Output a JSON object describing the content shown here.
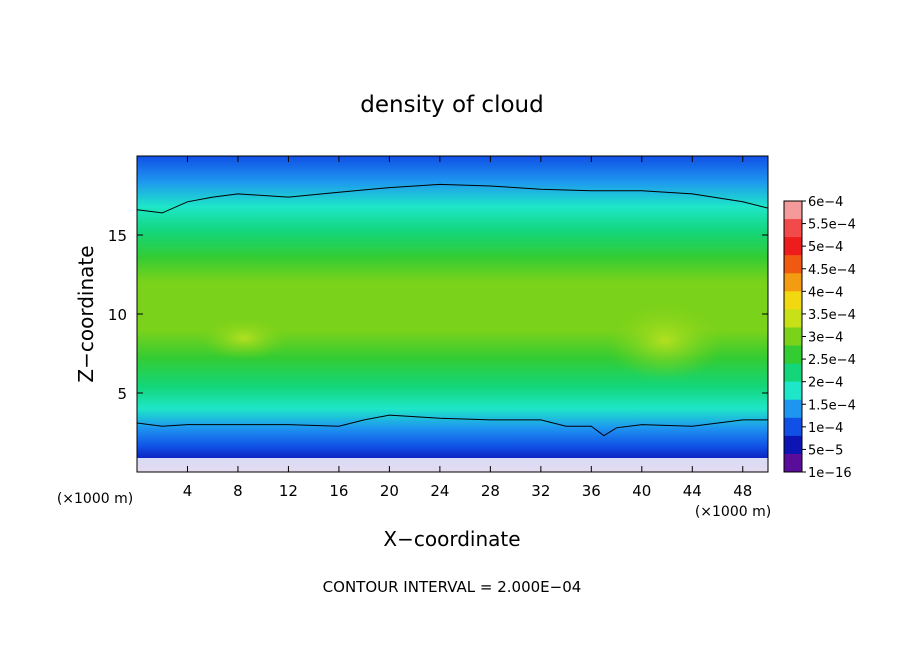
{
  "chart_data": {
    "type": "heatmap",
    "title": "density of cloud",
    "xlabel": "X−coordinate",
    "ylabel": "Z−coordinate",
    "x_unit_left": "(×1000 m)",
    "x_unit_right": "(×1000 m)",
    "footer": "CONTOUR INTERVAL = 2.000E−04",
    "xlim": [
      0,
      50
    ],
    "ylim": [
      0,
      20
    ],
    "x_ticks": [
      4,
      8,
      12,
      16,
      20,
      24,
      28,
      32,
      36,
      40,
      44,
      48
    ],
    "y_ticks": [
      5,
      10,
      15
    ],
    "colorbar": {
      "labels": [
        "6e−4",
        "5.5e−4",
        "5e−4",
        "4.5e−4",
        "4e−4",
        "3.5e−4",
        "3e−4",
        "2.5e−4",
        "2e−4",
        "1.5e−4",
        "1e−4",
        "5e−5",
        "1e−16"
      ],
      "values": [
        0.0006,
        0.00055,
        0.0005,
        0.00045,
        0.0004,
        0.00035,
        0.0003,
        0.00025,
        0.0002,
        0.00015,
        0.0001,
        5e-05,
        1e-16
      ],
      "colors": [
        "#f49a9a",
        "#f24a4a",
        "#ee1c1c",
        "#f05a10",
        "#f39c12",
        "#f1d80f",
        "#c8e018",
        "#7bd21a",
        "#33cc33",
        "#13d67a",
        "#1ee6c8",
        "#1e96f0",
        "#1050e6",
        "#0c14b4",
        "#5a0c9a"
      ]
    },
    "profile": {
      "description_levels_z": [
        0,
        0.8,
        1.5,
        2.5,
        3.5,
        5,
        7,
        9,
        11,
        13,
        15,
        16.5,
        17.8,
        18.8,
        19.8
      ],
      "density": [
        0,
        1e-05,
        6e-05,
        0.00011,
        0.00016,
        0.00022,
        0.00028,
        0.0003,
        0.0003,
        0.00028,
        0.00025,
        0.00021,
        0.00017,
        0.00012,
        8e-05
      ]
    },
    "contours": [
      {
        "level": 0.0002,
        "x": [
          0,
          2,
          4,
          6,
          8,
          12,
          16,
          20,
          24,
          28,
          32,
          36,
          40,
          44,
          48,
          50
        ],
        "z": [
          16.6,
          16.4,
          17.1,
          17.4,
          17.6,
          17.4,
          17.7,
          18.0,
          18.2,
          18.1,
          17.9,
          17.8,
          17.8,
          17.6,
          17.1,
          16.7
        ]
      },
      {
        "level": 0.0002,
        "x": [
          0,
          2,
          4,
          8,
          12,
          16,
          18,
          20,
          24,
          28,
          32,
          34,
          36,
          37,
          38,
          40,
          44,
          48,
          50
        ],
        "z": [
          3.1,
          2.9,
          3.0,
          3.0,
          3.0,
          2.9,
          3.3,
          3.6,
          3.4,
          3.3,
          3.3,
          2.9,
          2.9,
          2.3,
          2.8,
          3.0,
          2.9,
          3.3,
          3.3
        ]
      }
    ],
    "grid": false
  }
}
